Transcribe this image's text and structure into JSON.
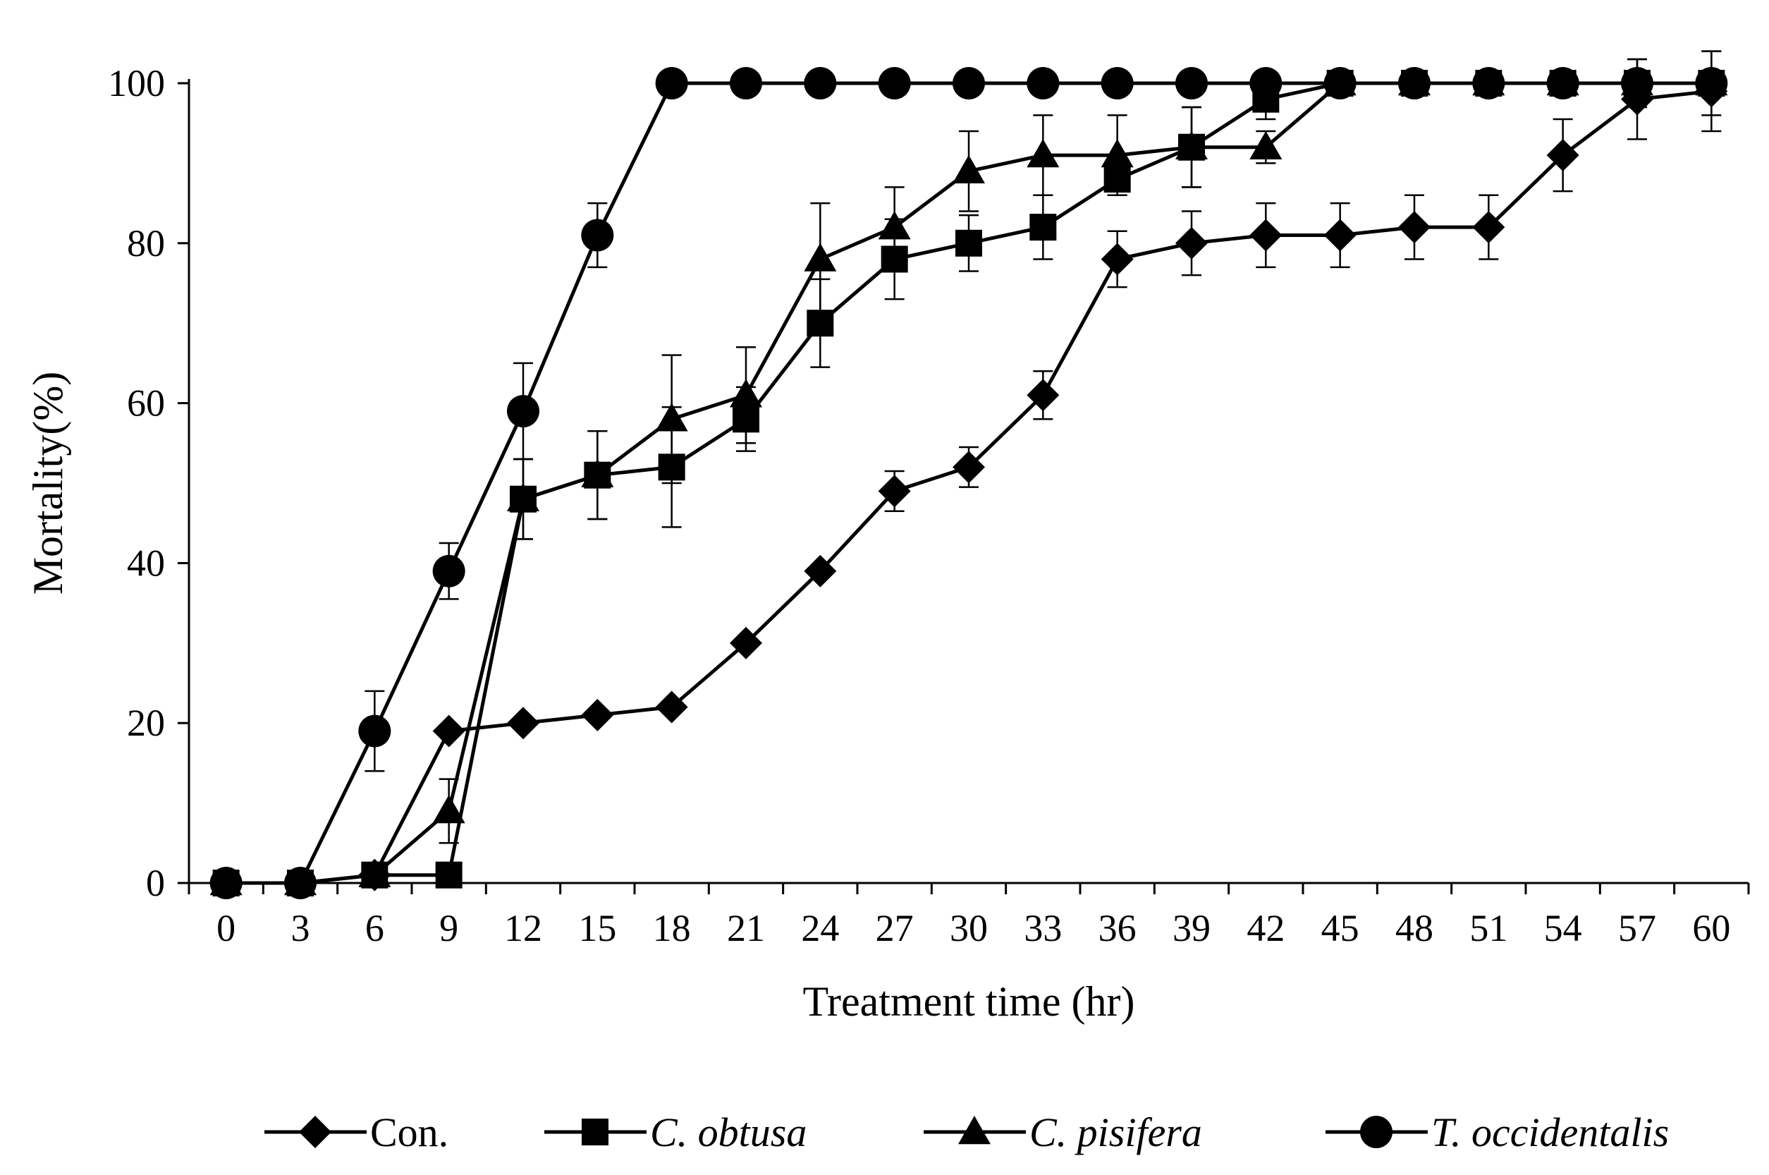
{
  "chart_data": {
    "type": "line",
    "title": "",
    "xlabel": "Treatment time (hr)",
    "ylabel": "Mortality(%)",
    "xlim": [
      -1.5,
      61.5
    ],
    "ylim": [
      0,
      100
    ],
    "x": [
      0,
      3,
      6,
      9,
      12,
      15,
      18,
      21,
      24,
      27,
      30,
      33,
      36,
      39,
      42,
      45,
      48,
      51,
      54,
      57,
      60
    ],
    "x_tick_labels": [
      "0",
      "3",
      "6",
      "9",
      "12",
      "15",
      "18",
      "21",
      "24",
      "27",
      "30",
      "33",
      "36",
      "39",
      "42",
      "45",
      "48",
      "51",
      "54",
      "57",
      "60"
    ],
    "y_ticks": [
      0,
      20,
      40,
      60,
      80,
      100
    ],
    "y_tick_labels": [
      "0",
      "20",
      "40",
      "60",
      "80",
      "100"
    ],
    "grid": false,
    "legend_position": "bottom",
    "color": "#000000",
    "series": [
      {
        "name": "Con.",
        "italic": false,
        "marker": "diamond",
        "values": [
          0,
          0,
          1,
          19,
          20,
          21,
          22,
          30,
          39,
          49,
          52,
          61,
          78,
          80,
          81,
          81,
          82,
          82,
          91,
          98,
          99
        ],
        "errors": [
          0,
          0,
          0,
          0,
          0,
          0,
          0,
          0,
          0,
          2.5,
          2.5,
          3,
          3.5,
          4,
          4,
          4,
          4,
          4,
          4.5,
          5,
          5
        ]
      },
      {
        "name": "C. obtusa",
        "italic": true,
        "marker": "square",
        "values": [
          0,
          0,
          1,
          1,
          48,
          51,
          52,
          58,
          70,
          78,
          80,
          82,
          88,
          92,
          98,
          100,
          100,
          100,
          100,
          100,
          100
        ],
        "errors": [
          0,
          0,
          0,
          0,
          5,
          5.5,
          7.5,
          4,
          5.5,
          5,
          3.5,
          4,
          2,
          5,
          2.5,
          0,
          0,
          0,
          0,
          3,
          4
        ]
      },
      {
        "name": "C. pisifera",
        "italic": true,
        "marker": "triangle",
        "values": [
          0,
          0,
          1,
          9,
          48,
          51,
          58,
          61,
          78,
          82,
          89,
          91,
          91,
          92,
          92,
          100,
          100,
          100,
          100,
          100,
          100
        ],
        "errors": [
          0,
          0,
          0,
          4,
          5,
          5.5,
          8,
          6,
          7,
          5,
          5,
          5,
          5,
          5,
          2,
          0,
          0,
          0,
          0,
          0,
          0
        ]
      },
      {
        "name": "T. occidentalis",
        "italic": true,
        "marker": "circle",
        "values": [
          0,
          0,
          19,
          39,
          59,
          81,
          100,
          100,
          100,
          100,
          100,
          100,
          100,
          100,
          100,
          100,
          100,
          100,
          100,
          100,
          100
        ],
        "errors": [
          0,
          0,
          5,
          3.5,
          6,
          4,
          0,
          0,
          0,
          0,
          0,
          0,
          0,
          0,
          0,
          0,
          0,
          0,
          0,
          0,
          0
        ]
      }
    ]
  }
}
